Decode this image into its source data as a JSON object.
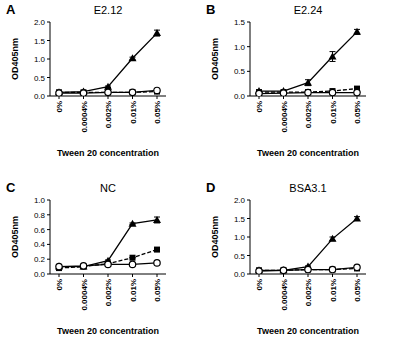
{
  "chart_data": [
    {
      "type": "line",
      "label": "A",
      "title": "E2.12",
      "x_label": "Tween 20 concentration",
      "y_label": "OD405nm",
      "categories": [
        "0%",
        "0.0004%",
        "0.002%",
        "0.01%",
        "0.05%"
      ],
      "ylim": [
        0,
        2
      ],
      "yticks": [
        {
          "value": 0,
          "label": "0.0"
        },
        {
          "value": 0.5,
          "label": "0.5"
        },
        {
          "value": 1,
          "label": "1.0"
        },
        {
          "value": 1.5,
          "label": "1.5"
        },
        {
          "value": 2,
          "label": "2.0"
        }
      ],
      "series": [
        {
          "color": "#000000",
          "marker": "triangle",
          "line_style": "solid",
          "values": [
            0.1,
            0.12,
            0.25,
            1.02,
            1.7
          ],
          "errors": [
            0.01,
            0.01,
            0.02,
            0.03,
            0.08
          ]
        },
        {
          "color": "#000000",
          "marker": "square",
          "line_style": "dashed",
          "values": [
            0.1,
            0.1,
            0.1,
            0.1,
            0.12
          ],
          "errors": [
            0,
            0,
            0,
            0,
            0
          ]
        },
        {
          "color": "#000000",
          "marker": "circle",
          "line_style": "solid",
          "values": [
            0.08,
            0.08,
            0.1,
            0.1,
            0.15
          ],
          "errors": [
            0,
            0,
            0,
            0,
            0
          ]
        }
      ]
    },
    {
      "type": "line",
      "label": "B",
      "title": "E2.24",
      "x_label": "Tween 20 concentration",
      "y_label": "OD405nm",
      "categories": [
        "0%",
        "0.0004%",
        "0.002%",
        "0.01%",
        "0.05%"
      ],
      "ylim": [
        0,
        1.5
      ],
      "yticks": [
        {
          "value": 0,
          "label": "0.0"
        },
        {
          "value": 0.5,
          "label": "0.5"
        },
        {
          "value": 1,
          "label": "1.0"
        },
        {
          "value": 1.5,
          "label": "1.5"
        }
      ],
      "series": [
        {
          "color": "#000000",
          "marker": "triangle",
          "line_style": "solid",
          "values": [
            0.1,
            0.1,
            0.27,
            0.8,
            1.3
          ],
          "errors": [
            0.01,
            0.01,
            0.06,
            0.1,
            0.05
          ]
        },
        {
          "color": "#000000",
          "marker": "square",
          "line_style": "dashed",
          "values": [
            0.08,
            0.08,
            0.08,
            0.1,
            0.15
          ],
          "errors": [
            0,
            0,
            0,
            0,
            0
          ]
        },
        {
          "color": "#000000",
          "marker": "circle",
          "line_style": "solid",
          "values": [
            0.05,
            0.06,
            0.07,
            0.07,
            0.07
          ],
          "errors": [
            0,
            0,
            0,
            0,
            0
          ]
        }
      ]
    },
    {
      "type": "line",
      "label": "C",
      "title": "NC",
      "x_label": "Tween 20 concentration",
      "y_label": "OD405nm",
      "categories": [
        "0%",
        "0.0004%",
        "0.002%",
        "0.01%",
        "0.05%"
      ],
      "ylim": [
        0,
        1
      ],
      "yticks": [
        {
          "value": 0,
          "label": "0.0"
        },
        0.2,
        0.4,
        0.6,
        0.8,
        {
          "value": 1,
          "label": "1.0"
        }
      ],
      "series": [
        {
          "color": "#000000",
          "marker": "triangle",
          "line_style": "solid",
          "values": [
            0.1,
            0.1,
            0.18,
            0.68,
            0.73
          ],
          "errors": [
            0.01,
            0.01,
            0.01,
            0.01,
            0.04
          ]
        },
        {
          "color": "#000000",
          "marker": "square",
          "line_style": "dashed",
          "values": [
            0.08,
            0.1,
            0.14,
            0.22,
            0.33
          ],
          "errors": [
            0,
            0,
            0,
            0,
            0
          ]
        },
        {
          "color": "#000000",
          "marker": "circle",
          "line_style": "solid",
          "values": [
            0.1,
            0.11,
            0.13,
            0.13,
            0.15
          ],
          "errors": [
            0,
            0,
            0,
            0,
            0
          ]
        }
      ]
    },
    {
      "type": "line",
      "label": "D",
      "title": "BSA3.1",
      "x_label": "Tween 20 concentration",
      "y_label": "OD405nm",
      "categories": [
        "0%",
        "0.0004%",
        "0.002%",
        "0.01%",
        "0.05%"
      ],
      "ylim": [
        0,
        2
      ],
      "yticks": [
        {
          "value": 0,
          "label": "0.0"
        },
        {
          "value": 0.5,
          "label": "0.5"
        },
        {
          "value": 1,
          "label": "1.0"
        },
        {
          "value": 1.5,
          "label": "1.5"
        },
        {
          "value": 2,
          "label": "2.0"
        }
      ],
      "series": [
        {
          "color": "#000000",
          "marker": "triangle",
          "line_style": "solid",
          "values": [
            0.1,
            0.1,
            0.2,
            0.95,
            1.5
          ],
          "errors": [
            0.01,
            0.01,
            0.02,
            0.05,
            0.05
          ]
        },
        {
          "color": "#000000",
          "marker": "square",
          "line_style": "dashed",
          "values": [
            0.1,
            0.1,
            0.12,
            0.12,
            0.15
          ],
          "errors": [
            0,
            0,
            0,
            0,
            0
          ]
        },
        {
          "color": "#000000",
          "marker": "circle",
          "line_style": "solid",
          "values": [
            0.08,
            0.1,
            0.12,
            0.12,
            0.18
          ],
          "errors": [
            0,
            0,
            0,
            0,
            0
          ]
        }
      ]
    }
  ]
}
